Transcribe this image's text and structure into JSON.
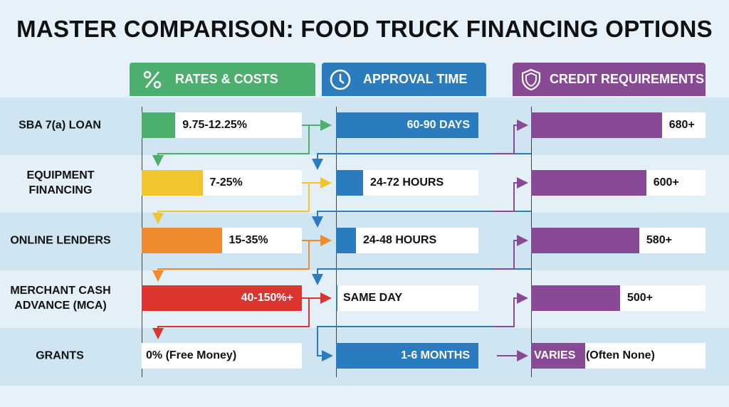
{
  "title": "MASTER COMPARISON: FOOD TRUCK FINANCING OPTIONS",
  "columns": [
    {
      "label": "RATES & COSTS",
      "icon": "percent-icon",
      "color": "#4caf6e"
    },
    {
      "label": "APPROVAL TIME",
      "icon": "clock-icon",
      "color": "#2b7bbf"
    },
    {
      "label": "CREDIT REQUIREMENTS",
      "icon": "shield-icon",
      "color": "#884a94"
    }
  ],
  "rows": [
    {
      "label": "SBA 7(a) LOAN",
      "rate": {
        "text": "9.75-12.25%",
        "fill": 0.21,
        "color": "#4caf6e"
      },
      "approval": {
        "text": "60-90 DAYS",
        "fill": 1.0
      },
      "credit": {
        "text": "680+",
        "fill": 0.75
      }
    },
    {
      "label": "EQUIPMENT FINANCING",
      "rate": {
        "text": "7-25%",
        "fill": 0.38,
        "color": "#f0c52e"
      },
      "approval": {
        "text": "24-72 HOURS",
        "fill": 0.19
      },
      "credit": {
        "text": "600+",
        "fill": 0.66
      }
    },
    {
      "label": "ONLINE LENDERS",
      "rate": {
        "text": "15-35%",
        "fill": 0.5,
        "color": "#f08a2e"
      },
      "approval": {
        "text": "24-48 HOURS",
        "fill": 0.14
      },
      "credit": {
        "text": "580+",
        "fill": 0.62
      }
    },
    {
      "label": "MERCHANT CASH ADVANCE (MCA)",
      "rate": {
        "text": "40-150%+",
        "fill": 1.0,
        "color": "#dc3530"
      },
      "approval": {
        "text": "SAME DAY",
        "fill": 0.01
      },
      "credit": {
        "text": "500+",
        "fill": 0.51
      }
    },
    {
      "label": "GRANTS",
      "rate": {
        "text": "0% (Free Money)",
        "fill": 0,
        "color": "#dc3530"
      },
      "approval": {
        "text": "1-6 MONTHS",
        "fill": 1.0
      },
      "credit": {
        "text": "VARIES",
        "text2": "(Often None)",
        "fill": 0.31
      }
    }
  ]
}
